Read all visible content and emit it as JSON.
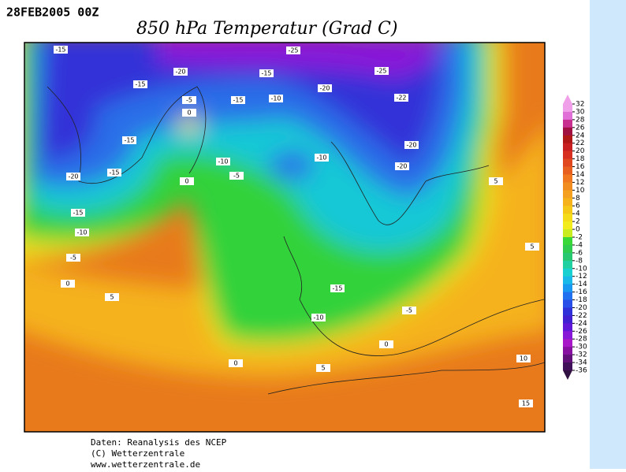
{
  "header": {
    "date": "28FEB2005 00Z",
    "title": "850 hPa Temperatur (Grad C)"
  },
  "footer": {
    "lines": [
      "Daten: Reanalysis des NCEP",
      "(C) Wetterzentrale",
      "www.wetterzentrale.de"
    ]
  },
  "colorbar": {
    "ticks": [
      32,
      30,
      28,
      26,
      24,
      22,
      20,
      18,
      16,
      14,
      12,
      10,
      8,
      6,
      4,
      2,
      0,
      -2,
      -4,
      -6,
      -8,
      -10,
      -12,
      -14,
      -16,
      -18,
      -20,
      -22,
      -24,
      -26,
      -28,
      -30,
      -32,
      -34,
      -36
    ]
  },
  "map": {
    "contour_labels": [
      -15,
      -25,
      -25,
      -20,
      -15,
      -15,
      -20,
      -22,
      -5,
      -15,
      -10,
      0,
      -15,
      -20,
      -10,
      -10,
      -20,
      -15,
      -20,
      -5,
      0,
      5,
      -15,
      -10,
      -5,
      5,
      0,
      -15,
      5,
      -5,
      -10,
      0,
      0,
      5,
      10,
      15
    ]
  }
}
